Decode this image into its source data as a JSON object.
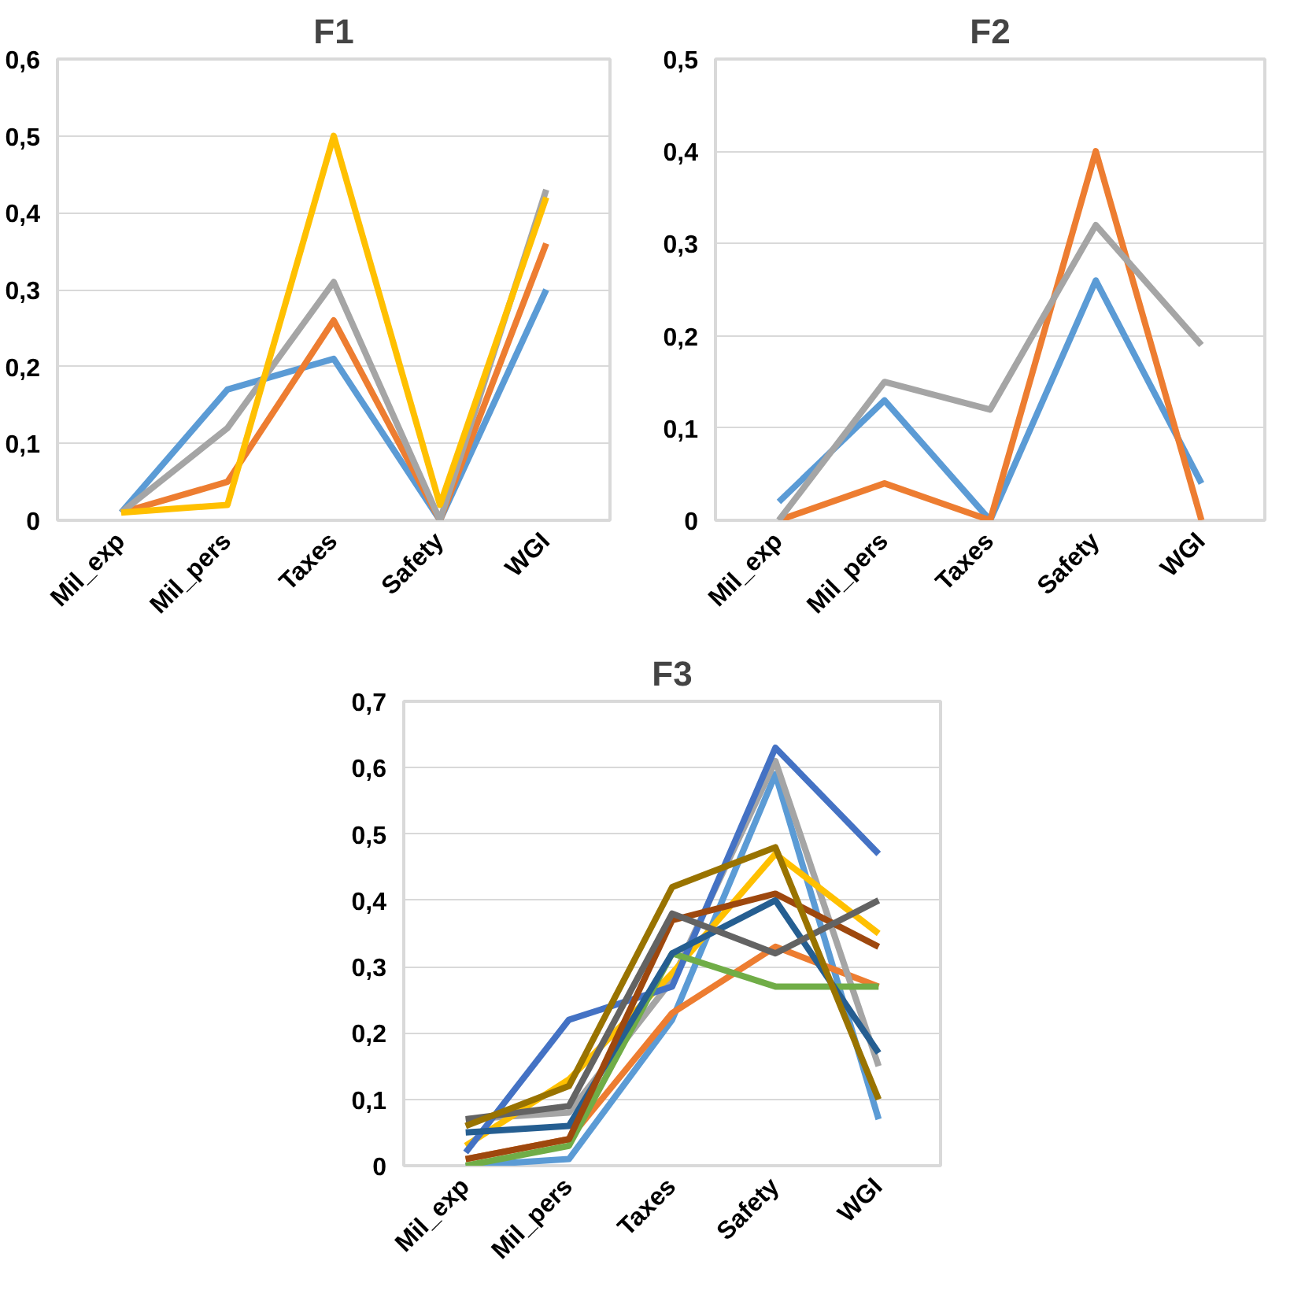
{
  "chart_data": [
    {
      "type": "line",
      "title": "F1",
      "categories": [
        "Mil_exp",
        "Mil_pers",
        "Taxes",
        "Safety",
        "WGI"
      ],
      "ylim": [
        0,
        0.6
      ],
      "yticks": [
        {
          "value": 0,
          "label": "0"
        },
        {
          "value": 0.1,
          "label": "0,1"
        },
        {
          "value": 0.2,
          "label": "0,2"
        },
        {
          "value": 0.3,
          "label": "0,3"
        },
        {
          "value": 0.4,
          "label": "0,4"
        },
        {
          "value": 0.5,
          "label": "0,5"
        },
        {
          "value": 0.6,
          "label": "0,6"
        }
      ],
      "grid": "y",
      "line_style": "solid",
      "series": [
        {
          "color": "#5b9bd5",
          "values": [
            0.01,
            0.17,
            0.21,
            0,
            0.3
          ]
        },
        {
          "color": "#ed7d31",
          "values": [
            0.01,
            0.05,
            0.26,
            0,
            0.36
          ]
        },
        {
          "color": "#a5a5a5",
          "values": [
            0.01,
            0.12,
            0.31,
            0,
            0.43
          ]
        },
        {
          "color": "#ffc000",
          "values": [
            0.01,
            0.02,
            0.5,
            0.02,
            0.42
          ]
        }
      ]
    },
    {
      "type": "line",
      "title": "F2",
      "categories": [
        "Mil_exp",
        "Mil_pers",
        "Taxes",
        "Safety",
        "WGI"
      ],
      "ylim": [
        0,
        0.5
      ],
      "yticks": [
        {
          "value": 0,
          "label": "0"
        },
        {
          "value": 0.1,
          "label": "0,1"
        },
        {
          "value": 0.2,
          "label": "0,2"
        },
        {
          "value": 0.3,
          "label": "0,3"
        },
        {
          "value": 0.4,
          "label": "0,4"
        },
        {
          "value": 0.5,
          "label": "0,5"
        }
      ],
      "grid": "y",
      "line_style": "solid",
      "series": [
        {
          "color": "#5b9bd5",
          "values": [
            0.02,
            0.13,
            0,
            0.26,
            0.04
          ]
        },
        {
          "color": "#ed7d31",
          "values": [
            0,
            0.04,
            0,
            0.4,
            0
          ]
        },
        {
          "color": "#a5a5a5",
          "values": [
            0,
            0.15,
            0.12,
            0.32,
            0.19
          ]
        }
      ]
    },
    {
      "type": "line",
      "title": "F3",
      "categories": [
        "Mil_exp",
        "Mil_pers",
        "Taxes",
        "Safety",
        "WGI"
      ],
      "ylim": [
        0,
        0.7
      ],
      "yticks": [
        {
          "value": 0,
          "label": "0"
        },
        {
          "value": 0.1,
          "label": "0,1"
        },
        {
          "value": 0.2,
          "label": "0,2"
        },
        {
          "value": 0.3,
          "label": "0,3"
        },
        {
          "value": 0.4,
          "label": "0,4"
        },
        {
          "value": 0.5,
          "label": "0,5"
        },
        {
          "value": 0.6,
          "label": "0,6"
        },
        {
          "value": 0.7,
          "label": "0,7"
        }
      ],
      "grid": "y",
      "line_style": "solid",
      "series": [
        {
          "color": "#5b9bd5",
          "values": [
            0,
            0.01,
            0.22,
            0.59,
            0.07
          ]
        },
        {
          "color": "#ed7d31",
          "values": [
            0.01,
            0.04,
            0.23,
            0.33,
            0.27
          ]
        },
        {
          "color": "#a5a5a5",
          "values": [
            0.07,
            0.08,
            0.28,
            0.61,
            0.15
          ]
        },
        {
          "color": "#ffc000",
          "values": [
            0.03,
            0.13,
            0.29,
            0.47,
            0.35
          ]
        },
        {
          "color": "#4472c4",
          "values": [
            0.02,
            0.22,
            0.27,
            0.63,
            0.47
          ]
        },
        {
          "color": "#70ad47",
          "values": [
            0,
            0.03,
            0.32,
            0.27,
            0.27
          ]
        },
        {
          "color": "#255e91",
          "values": [
            0.05,
            0.06,
            0.32,
            0.4,
            0.17
          ]
        },
        {
          "color": "#9e480e",
          "values": [
            0.01,
            0.04,
            0.37,
            0.41,
            0.33
          ]
        },
        {
          "color": "#636363",
          "values": [
            0.07,
            0.09,
            0.38,
            0.32,
            0.4
          ]
        },
        {
          "color": "#997300",
          "values": [
            0.06,
            0.12,
            0.42,
            0.48,
            0.1
          ]
        }
      ]
    }
  ]
}
